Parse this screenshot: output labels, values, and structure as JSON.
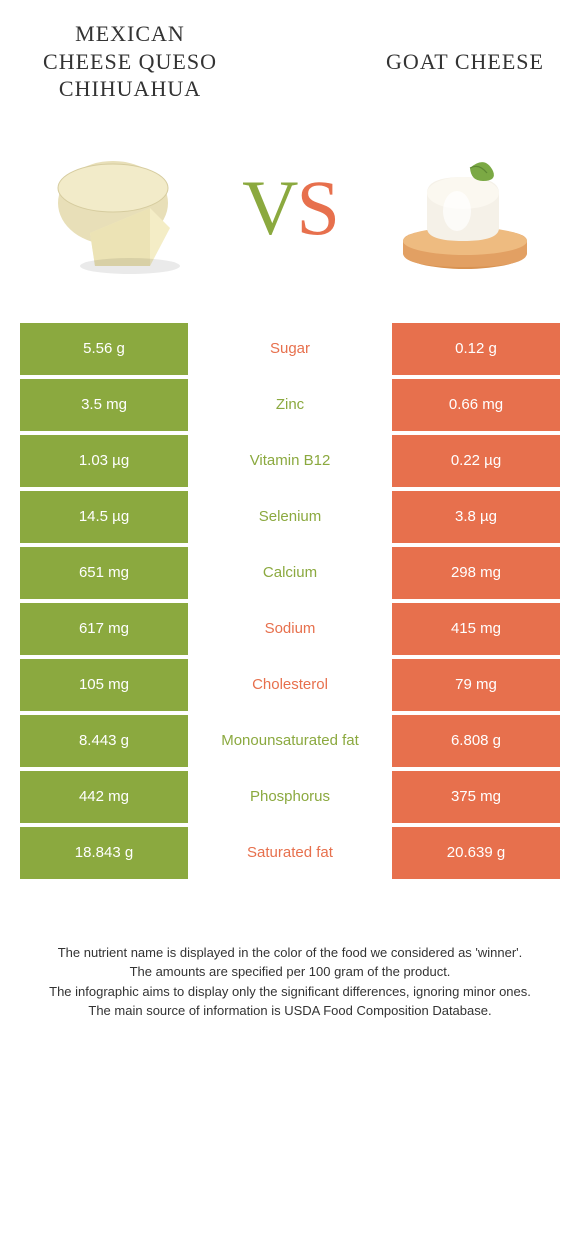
{
  "colors": {
    "green": "#8ba93f",
    "orange": "#e7704d",
    "vs_v": "#8ba93f",
    "vs_s": "#e7704d"
  },
  "left": {
    "title": "Mexican Cheese queso chihuahua"
  },
  "right": {
    "title": "Goat cheese"
  },
  "vs": {
    "v": "V",
    "s": "S"
  },
  "rows": [
    {
      "label": "Sugar",
      "left": "5.56 g",
      "right": "0.12 g",
      "winner": "right"
    },
    {
      "label": "Zinc",
      "left": "3.5 mg",
      "right": "0.66 mg",
      "winner": "left"
    },
    {
      "label": "Vitamin B12",
      "left": "1.03 µg",
      "right": "0.22 µg",
      "winner": "left"
    },
    {
      "label": "Selenium",
      "left": "14.5 µg",
      "right": "3.8 µg",
      "winner": "left"
    },
    {
      "label": "Calcium",
      "left": "651 mg",
      "right": "298 mg",
      "winner": "left"
    },
    {
      "label": "Sodium",
      "left": "617 mg",
      "right": "415 mg",
      "winner": "right"
    },
    {
      "label": "Cholesterol",
      "left": "105 mg",
      "right": "79 mg",
      "winner": "right"
    },
    {
      "label": "Monounsaturated fat",
      "left": "8.443 g",
      "right": "6.808 g",
      "winner": "left"
    },
    {
      "label": "Phosphorus",
      "left": "442 mg",
      "right": "375 mg",
      "winner": "left"
    },
    {
      "label": "Saturated fat",
      "left": "18.843 g",
      "right": "20.639 g",
      "winner": "right"
    }
  ],
  "footer": [
    "The nutrient name is displayed in the color of the food we considered as 'winner'.",
    "The amounts are specified per 100 gram of the product.",
    "The infographic aims to display only the significant differences, ignoring minor ones.",
    "The main source of information is USDA Food Composition Database."
  ]
}
